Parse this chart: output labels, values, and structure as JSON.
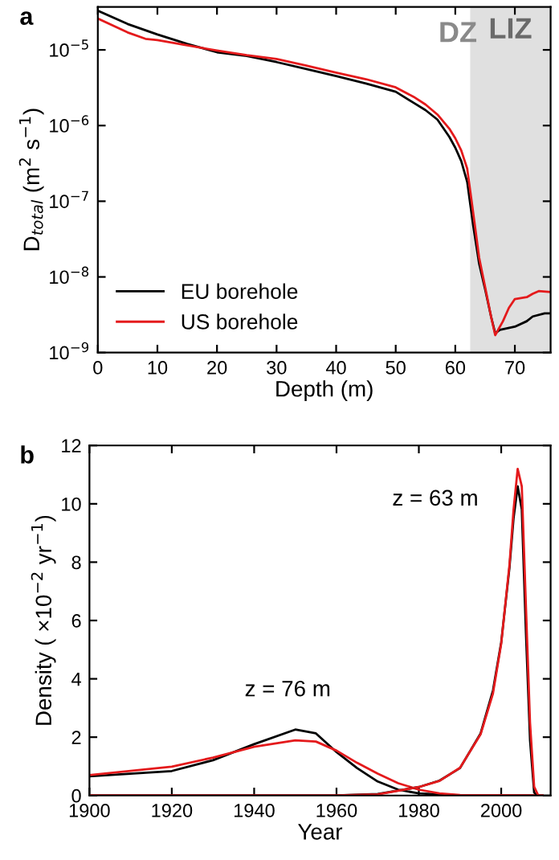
{
  "chart_data": [
    {
      "type": "line",
      "title": "a",
      "xlabel": "Depth (m)",
      "ylabel": "D$_{total}$ (m$^{2}$ s$^{−1}$)",
      "log": "y",
      "xlim": [
        0,
        76
      ],
      "ylim": [
        1e-09,
        3.7e-05
      ],
      "xticks": [
        0,
        10,
        20,
        30,
        40,
        50,
        60,
        70
      ],
      "yticks": [
        {
          "value": 1e-09,
          "label": "10$^{−9}$"
        },
        {
          "value": 1e-08,
          "label": "10$^{−8}$"
        },
        {
          "value": 1e-07,
          "label": "10$^{−7}$"
        },
        {
          "value": 1e-06,
          "label": "10$^{−6}$"
        },
        {
          "value": 1e-05,
          "label": "10$^{−5}$"
        }
      ],
      "legend": "bottom left",
      "grid": false,
      "bands": [
        {
          "axis": "x",
          "from": 62.5,
          "to": 76,
          "label": "LIZ",
          "color": "#e0e0e0"
        }
      ],
      "annotations": [
        "DZ"
      ],
      "series": [
        {
          "name": "EU borehole",
          "color": "#000000",
          "x": [
            0,
            5,
            10,
            15,
            20,
            25,
            30,
            35,
            40,
            45,
            50,
            53,
            55,
            57,
            59,
            60,
            61,
            62,
            63,
            64,
            65,
            66,
            66.7,
            67.5,
            70,
            72,
            73,
            75,
            76
          ],
          "values": [
            3.3e-05,
            2.2e-05,
            1.6e-05,
            1.2e-05,
            9.3e-06,
            8.3e-06,
            6.9e-06,
            5.6e-06,
            4.5e-06,
            3.6e-06,
            2.8e-06,
            2e-06,
            1.6e-06,
            1.2e-06,
            7.1e-07,
            5.1e-07,
            3.4e-07,
            1.8e-07,
            4.8e-08,
            1.5e-08,
            6.9e-09,
            3e-09,
            1.8e-09,
            2e-09,
            2.2e-09,
            2.6e-09,
            3e-09,
            3.3e-09,
            3.3e-09
          ]
        },
        {
          "name": "US borehole",
          "color": "#e41a1c",
          "x": [
            0,
            5,
            8,
            10,
            15,
            20,
            25,
            30,
            35,
            40,
            45,
            50,
            53,
            55,
            57,
            59,
            60,
            61,
            62,
            63,
            64,
            65,
            66,
            66.7,
            68,
            69,
            70,
            72,
            73,
            74,
            76
          ],
          "values": [
            2.6e-05,
            1.7e-05,
            1.4e-05,
            1.35e-05,
            1.15e-05,
            9.8e-06,
            8.5e-06,
            7.6e-06,
            6.2e-06,
            5e-06,
            4.1e-06,
            3.2e-06,
            2.4e-06,
            1.9e-06,
            1.4e-06,
            9.1e-07,
            6.8e-07,
            4.7e-07,
            2.7e-07,
            7.1e-08,
            1.8e-08,
            7.4e-09,
            3e-09,
            1.7e-09,
            2.6e-09,
            3.9e-09,
            5.1e-09,
            5.4e-09,
            6e-09,
            6.5e-09,
            6.3e-09
          ]
        }
      ]
    },
    {
      "type": "line",
      "title": "b",
      "xlabel": "Year",
      "ylabel": "Density ( ×10$^{−2}$ yr$^{−1}$)",
      "xlim": [
        1900,
        2012
      ],
      "ylim": [
        0,
        12
      ],
      "xticks": [
        1900,
        1920,
        1940,
        1960,
        1980,
        2000
      ],
      "yticks": [
        0,
        2,
        4,
        6,
        8,
        10,
        12
      ],
      "grid": false,
      "annotations": [
        "z = 76 m",
        "z = 63 m"
      ],
      "series": [
        {
          "color": "#000000",
          "x": [
            1900,
            1920,
            1930,
            1940,
            1950,
            1955,
            1960,
            1965,
            1970,
            1975,
            1980,
            1990,
            2010
          ],
          "values": [
            0.66,
            0.84,
            1.21,
            1.76,
            2.26,
            2.13,
            1.49,
            0.94,
            0.48,
            0.2,
            0.07,
            0,
            0
          ]
        },
        {
          "color": "#e41a1c",
          "x": [
            1900,
            1920,
            1930,
            1940,
            1950,
            1955,
            1960,
            1965,
            1970,
            1975,
            1980,
            1985,
            1990,
            2010
          ],
          "values": [
            0.7,
            0.99,
            1.3,
            1.67,
            1.89,
            1.85,
            1.54,
            1.12,
            0.75,
            0.42,
            0.2,
            0.07,
            0.02,
            0
          ]
        },
        {
          "color": "#000000",
          "x": [
            1900,
            1960,
            1970,
            1980,
            1985,
            1990,
            1995,
            1998,
            2000,
            2002,
            2003,
            2004,
            2005,
            2006,
            2007,
            2008,
            2009
          ],
          "values": [
            0,
            0,
            0.05,
            0.29,
            0.51,
            0.94,
            2.13,
            3.6,
            5.25,
            7.8,
            9.5,
            10.6,
            9.8,
            5.6,
            1.9,
            0.1,
            0
          ]
        },
        {
          "color": "#e41a1c",
          "x": [
            1900,
            1960,
            1970,
            1980,
            1985,
            1990,
            1995,
            1998,
            2000,
            2002,
            2003,
            2004,
            2005,
            2006,
            2007,
            2008,
            2009
          ],
          "values": [
            0,
            0,
            0.04,
            0.29,
            0.5,
            0.95,
            2.1,
            3.5,
            5.2,
            7.9,
            9.8,
            11.2,
            10.6,
            6.5,
            2.5,
            0.3,
            0
          ]
        }
      ]
    }
  ]
}
